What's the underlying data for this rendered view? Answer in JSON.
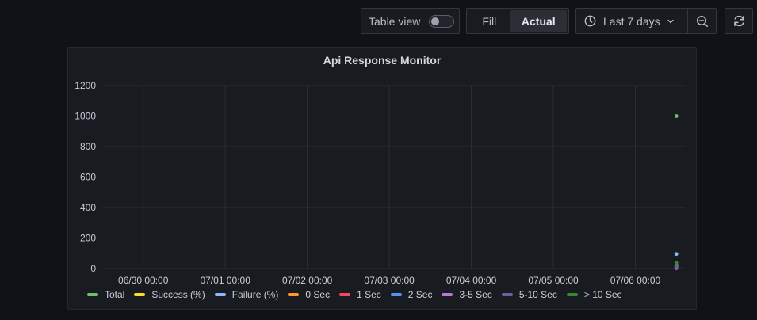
{
  "toolbar": {
    "table_view_label": "Table view",
    "table_view_on": false,
    "fill_label": "Fill",
    "actual_label": "Actual",
    "time_range_label": "Last 7 days",
    "icons": {
      "clock": "clock-icon",
      "chevron": "chevron-down-icon",
      "zoom_out": "zoom-out-icon",
      "refresh": "refresh-icon"
    }
  },
  "panel": {
    "title": "Api Response Monitor"
  },
  "chart_data": {
    "type": "scatter",
    "title": "Api Response Monitor",
    "xlabel": "",
    "ylabel": "",
    "ylim": [
      0,
      1200
    ],
    "yticks": [
      "0",
      "200",
      "400",
      "600",
      "800",
      "1000",
      "1200"
    ],
    "x_start": "06/29 12:00",
    "x_end": "07/06 14:30",
    "x_ticks": [
      "06/30 00:00",
      "07/01 00:00",
      "07/02 00:00",
      "07/03 00:00",
      "07/04 00:00",
      "07/05 00:00",
      "07/06 00:00"
    ],
    "grid": true,
    "legend_position": "bottom-left",
    "series": [
      {
        "name": "Total",
        "color": "#73bf69",
        "points": [
          {
            "x": "07/06 12:00",
            "y": 1000
          }
        ]
      },
      {
        "name": "Success (%)",
        "color": "#fade2a",
        "points": [
          {
            "x": "07/06 12:00",
            "y": 5
          }
        ]
      },
      {
        "name": "Failure (%)",
        "color": "#8ab8ff",
        "points": [
          {
            "x": "07/06 12:00",
            "y": 95
          }
        ]
      },
      {
        "name": "0 Sec",
        "color": "#ff9830",
        "points": [
          {
            "x": "07/06 12:00",
            "y": 15
          }
        ]
      },
      {
        "name": "1 Sec",
        "color": "#f2495c",
        "points": [
          {
            "x": "07/06 12:00",
            "y": 20
          }
        ]
      },
      {
        "name": "2 Sec",
        "color": "#5794f2",
        "points": [
          {
            "x": "07/06 12:00",
            "y": 25
          }
        ]
      },
      {
        "name": "3-5 Sec",
        "color": "#b877d9",
        "points": [
          {
            "x": "07/06 12:00",
            "y": 3
          }
        ]
      },
      {
        "name": "5-10 Sec",
        "color": "#705da0",
        "points": [
          {
            "x": "07/06 12:00",
            "y": 8
          }
        ]
      },
      {
        "name": "> 10 Sec",
        "color": "#37872d",
        "points": [
          {
            "x": "07/06 12:00",
            "y": 38
          }
        ]
      }
    ]
  }
}
